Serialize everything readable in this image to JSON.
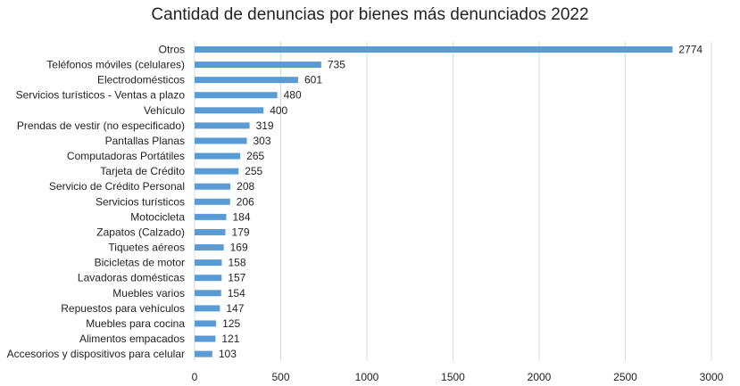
{
  "chart_data": {
    "type": "bar",
    "orientation": "horizontal",
    "title": "Cantidad de denuncias por bienes más denunciados 2022",
    "xlabel": "",
    "ylabel": "",
    "xlim": [
      0,
      3000
    ],
    "xticks": [
      0,
      500,
      1000,
      1500,
      2000,
      2500,
      3000
    ],
    "grid": true,
    "bar_color": "#5b9bd5",
    "categories": [
      "Otros",
      "Teléfonos móviles (celulares)",
      "Electrodomésticos",
      "Servicios turísticos - Ventas a plazo",
      "Vehículo",
      "Prendas de vestir (no especificado)",
      "Pantallas Planas",
      "Computadoras Portátiles",
      "Tarjeta de Crédito",
      "Servicio de Crédito Personal",
      "Servicios turísticos",
      "Motocicleta",
      "Zapatos (Calzado)",
      "Tiquetes aéreos",
      "Bicicletas de motor",
      "Lavadoras domésticas",
      "Muebles varios",
      "Repuestos para vehículos",
      "Muebles para cocina",
      "Alimentos empacados",
      "Accesorios y dispositivos para celular"
    ],
    "values": [
      2774,
      735,
      601,
      480,
      400,
      319,
      303,
      265,
      255,
      208,
      206,
      184,
      179,
      169,
      158,
      157,
      154,
      147,
      125,
      121,
      103
    ]
  }
}
